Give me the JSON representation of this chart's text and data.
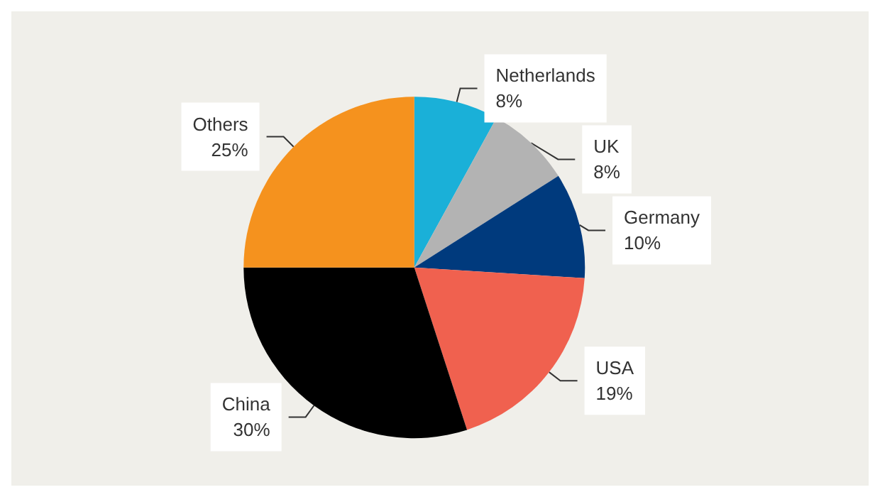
{
  "chart_data": {
    "type": "pie",
    "categories": [
      "Netherlands",
      "UK",
      "Germany",
      "USA",
      "China",
      "Others"
    ],
    "values": [
      8,
      8,
      10,
      19,
      30,
      25
    ],
    "value_labels": [
      "8%",
      "8%",
      "10%",
      "19%",
      "30%",
      "25%"
    ],
    "colors": [
      "#1ab0d8",
      "#b3b3b3",
      "#003a7d",
      "#f0614f",
      "#000000",
      "#f5921e"
    ],
    "legend": false
  }
}
